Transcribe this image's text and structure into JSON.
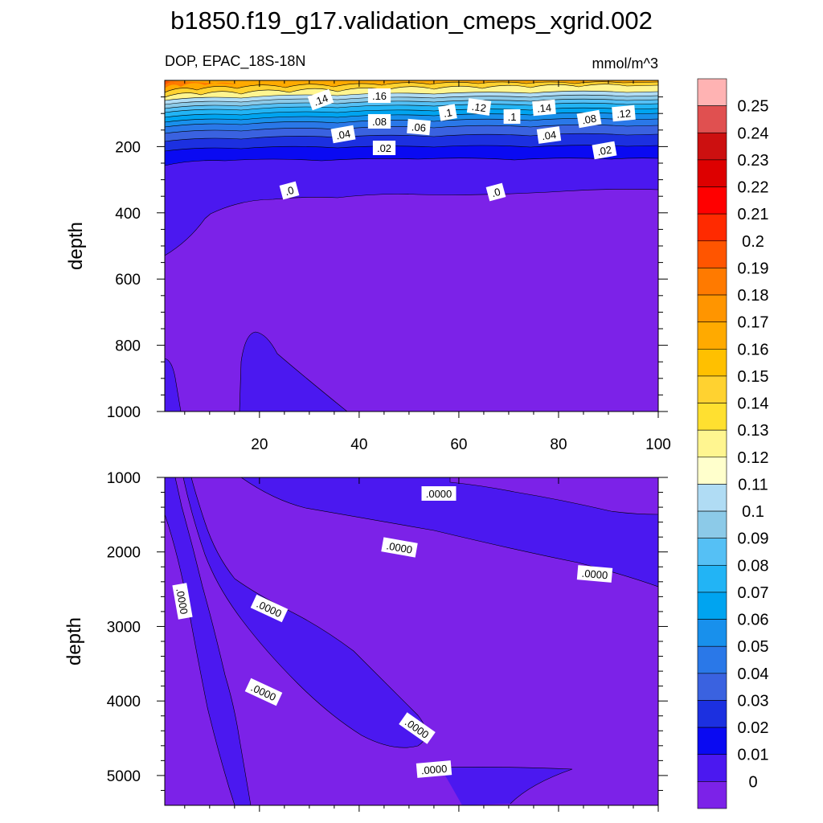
{
  "chart_data": {
    "type": "contour",
    "title": "b1850.f19_g17.validation_cmeps_xgrid.002",
    "subtitle_left": "DOP, EPAC_18S-18N",
    "subtitle_right": "mmol/m^3",
    "panels": [
      {
        "name": "upper",
        "ylabel": "depth",
        "xlim": [
          1,
          100
        ],
        "ylim": [
          0,
          1000
        ],
        "x_ticks": [
          "20",
          "40",
          "60",
          "80",
          "100"
        ],
        "y_ticks": [
          "200",
          "400",
          "600",
          "800",
          "1000"
        ],
        "contour_labels": [
          ".14",
          ".16",
          ".1",
          ".12",
          ".1",
          ".14",
          ".12",
          ".08",
          ".06",
          ".08",
          ".04",
          ".04",
          ".02",
          ".02",
          ".0",
          ".0"
        ]
      },
      {
        "name": "lower",
        "ylabel": "depth",
        "xlim": [
          1,
          100
        ],
        "ylim": [
          1000,
          5400
        ],
        "y_ticks": [
          "1000",
          "2000",
          "3000",
          "4000",
          "5000"
        ],
        "contour_labels": [
          ".0000",
          ".0000",
          ".0000",
          ".0000",
          ".0000",
          ".0000",
          ".0000",
          ".0000"
        ]
      }
    ],
    "colorbar": {
      "levels": [
        "0.25",
        "0.24",
        "0.23",
        "0.22",
        "0.21",
        "0.2",
        "0.19",
        "0.18",
        "0.17",
        "0.16",
        "0.15",
        "0.14",
        "0.13",
        "0.12",
        "0.11",
        "0.1",
        "0.09",
        "0.08",
        "0.07",
        "0.06",
        "0.05",
        "0.04",
        "0.03",
        "0.02",
        "0.01",
        "0"
      ],
      "colors": [
        "#ffb3b3",
        "#e05050",
        "#cc1010",
        "#dd0000",
        "#ff0000",
        "#ff2a00",
        "#ff5500",
        "#ff7a00",
        "#ff9500",
        "#ffaa00",
        "#ffc000",
        "#ffd230",
        "#ffe030",
        "#fff590",
        "#ffffcc",
        "#b0dcf4",
        "#8ccae8",
        "#55c0f5",
        "#22b4f5",
        "#00a4f0",
        "#1890ec",
        "#2a78e8",
        "#3a62e0",
        "#1c30e0",
        "#0a0af2",
        "#4b18f0",
        "#7c22e8"
      ]
    }
  }
}
